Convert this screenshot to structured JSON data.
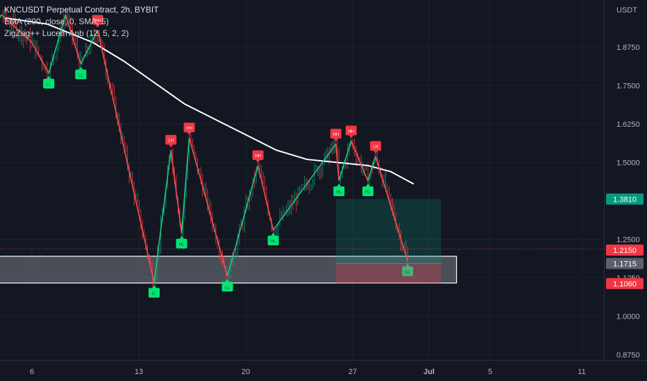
{
  "header": {
    "title": "KNCUSDT Perpetual Contract, 2h, BYBIT",
    "indicator_ema": "EMA (200, close, 0, SMA, 5)",
    "indicator_zigzag": "ZigZag++ Lucem Anb (12, 5, 2, 2)"
  },
  "price_axis": {
    "currency": "USDT",
    "ticks": [
      "1.8750",
      "1.7500",
      "1.6250",
      "1.5000",
      "1.2500",
      "1.1250",
      "1.0000",
      "0.8750"
    ]
  },
  "time_axis": {
    "labels": [
      "6",
      "13",
      "20",
      "27",
      "Jul",
      "5",
      "11"
    ]
  },
  "price_tags": [
    {
      "text": "1.3810",
      "color": "#089981"
    },
    {
      "text": "1.2150",
      "color": "#f23645"
    },
    {
      "text": "1.1715",
      "color": "#5d606b"
    },
    {
      "text": "1.1060",
      "color": "#f23645"
    }
  ],
  "pivot_labels": {
    "lows": [
      "LL",
      "LL",
      "LL",
      "HL",
      "LL",
      "HL",
      "HL",
      "HL",
      "LL",
      "LL"
    ],
    "highs": [
      "HH",
      "LH",
      "HH",
      "HH",
      "HH",
      "LH"
    ]
  },
  "chart_data": {
    "type": "candlestick",
    "symbol": "KNCUSDT",
    "interval": "2h",
    "exchange": "BYBIT",
    "y_range": [
      0.84,
      1.98
    ],
    "y_ticks": [
      0.875,
      1.0,
      1.125,
      1.25,
      1.5,
      1.625,
      1.75,
      1.875
    ],
    "current_price": 1.215,
    "zigzag": [
      {
        "day": 2.0,
        "price": 1.87,
        "label": ""
      },
      {
        "day": 2.3,
        "price": 1.83,
        "label": "LL"
      },
      {
        "day": 4.0,
        "price": 1.98,
        "label": ""
      },
      {
        "day": 6.0,
        "price": 1.89,
        "label": ""
      },
      {
        "day": 7.1,
        "price": 1.79,
        "label": "LL"
      },
      {
        "day": 8.2,
        "price": 1.98,
        "label": ""
      },
      {
        "day": 9.2,
        "price": 1.82,
        "label": "LL"
      },
      {
        "day": 10.3,
        "price": 1.93,
        "label": "HH"
      },
      {
        "day": 14.0,
        "price": 1.11,
        "label": "LL"
      },
      {
        "day": 15.1,
        "price": 1.54,
        "label": "LH"
      },
      {
        "day": 15.8,
        "price": 1.27,
        "label": "HL"
      },
      {
        "day": 16.3,
        "price": 1.58,
        "label": "HH"
      },
      {
        "day": 18.8,
        "price": 1.13,
        "label": "LL"
      },
      {
        "day": 20.8,
        "price": 1.49,
        "label": "HH"
      },
      {
        "day": 21.8,
        "price": 1.28,
        "label": "HL"
      },
      {
        "day": 25.9,
        "price": 1.56,
        "label": "HH"
      },
      {
        "day": 26.1,
        "price": 1.44,
        "label": "HL"
      },
      {
        "day": 26.9,
        "price": 1.57,
        "label": "HH"
      },
      {
        "day": 28.0,
        "price": 1.44,
        "label": "HL"
      },
      {
        "day": 28.5,
        "price": 1.52,
        "label": "LH"
      },
      {
        "day": 30.6,
        "price": 1.18,
        "label": "LL"
      }
    ],
    "ema_200": [
      {
        "day": 4.2,
        "price": 1.97
      },
      {
        "day": 7,
        "price": 1.95
      },
      {
        "day": 10,
        "price": 1.89
      },
      {
        "day": 12,
        "price": 1.83
      },
      {
        "day": 14,
        "price": 1.76
      },
      {
        "day": 16,
        "price": 1.69
      },
      {
        "day": 18,
        "price": 1.64
      },
      {
        "day": 20,
        "price": 1.59
      },
      {
        "day": 22,
        "price": 1.54
      },
      {
        "day": 24,
        "price": 1.51
      },
      {
        "day": 26,
        "price": 1.5
      },
      {
        "day": 28,
        "price": 1.49
      },
      {
        "day": 29.5,
        "price": 1.47
      },
      {
        "day": 31,
        "price": 1.43
      }
    ],
    "support_zone": {
      "price_top": 1.195,
      "price_bottom": 1.108,
      "day_from": 0,
      "day_to": 33.8
    },
    "long_position": {
      "day_from": 25.9,
      "day_to": 32.8,
      "entry": 1.1715,
      "target": 1.381,
      "stop": 1.106
    }
  }
}
